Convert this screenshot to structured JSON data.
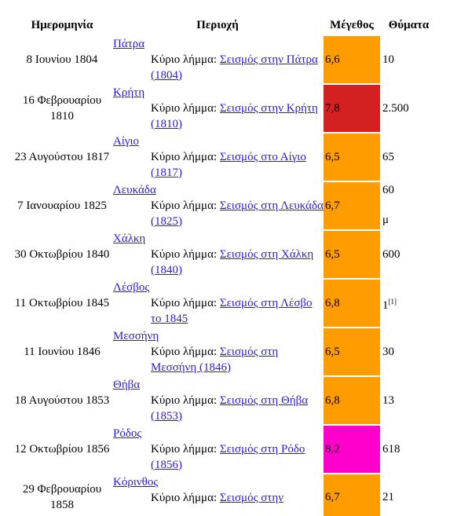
{
  "table": {
    "headers": [
      "Ημερομηνία",
      "Περιοχή",
      "Μέγεθος",
      "Θύματα"
    ],
    "main_article_label": "Κύριο λήμμα:",
    "rows": [
      {
        "date": "8 Ιουνίου 1804",
        "region": "Πάτρα",
        "article": "Σεισμός στην Πάτρα (1804)",
        "magnitude": "6,6",
        "color": "#ff9c00",
        "victims": "10"
      },
      {
        "date": "16 Φεβρουαρίου 1810",
        "region": "Κρήτη",
        "article": "Σεισμός στην Κρήτη (1810)",
        "magnitude": "7,8",
        "color": "#d42020",
        "victims": "2.500"
      },
      {
        "date": "23 Αυγούστου 1817",
        "region": "Αίγιο",
        "article": "Σεισμός στο Αίγιο (1817)",
        "magnitude": "6,5",
        "color": "#ff9c00",
        "victims": "65"
      },
      {
        "date": "7 Ιανουαρίου 1825",
        "region": "Λευκάδα",
        "article": "Σεισμός στη Λευκάδα (1825)",
        "magnitude": "6,7",
        "color": "#ff9c00",
        "victims": "60",
        "victims_note": "μ"
      },
      {
        "date": "30 Οκτωβρίου 1840",
        "region": "Χάλκη",
        "article": "Σεισμός στη Χάλκη (1840)",
        "magnitude": "6,5",
        "color": "#ff9c00",
        "victims": "600"
      },
      {
        "date": "11 Οκτωβρίου 1845",
        "region": "Λέσβος",
        "article": "Σεισμός στη Λέσβο το 1845",
        "magnitude": "6,8",
        "color": "#ff9c00",
        "victims": "1",
        "victims_ref": "[1]"
      },
      {
        "date": "11 Ιουνίου 1846",
        "region": "Μεσσήνη",
        "article": "Σεισμός στη Μεσσήνη (1846)",
        "magnitude": "6,5",
        "color": "#ff9c00",
        "victims": "30"
      },
      {
        "date": "18 Αυγούστου 1853",
        "region": "Θήβα",
        "article": "Σεισμός στη Θήβα (1853)",
        "magnitude": "6,8",
        "color": "#ff9c00",
        "victims": "13"
      },
      {
        "date": "12 Οκτωβρίου 1856",
        "region": "Ρόδος",
        "article": "Σεισμός στη Ρόδο (1856)",
        "magnitude": "8,2",
        "color": "#ff00cc",
        "victims": "618"
      },
      {
        "date": "29 Φεβρουαρίου 1858",
        "region": "Κόρινθος",
        "article": "Σεισμός στην",
        "magnitude": "6,7",
        "color": "#ff9c00",
        "victims": "21"
      }
    ]
  }
}
